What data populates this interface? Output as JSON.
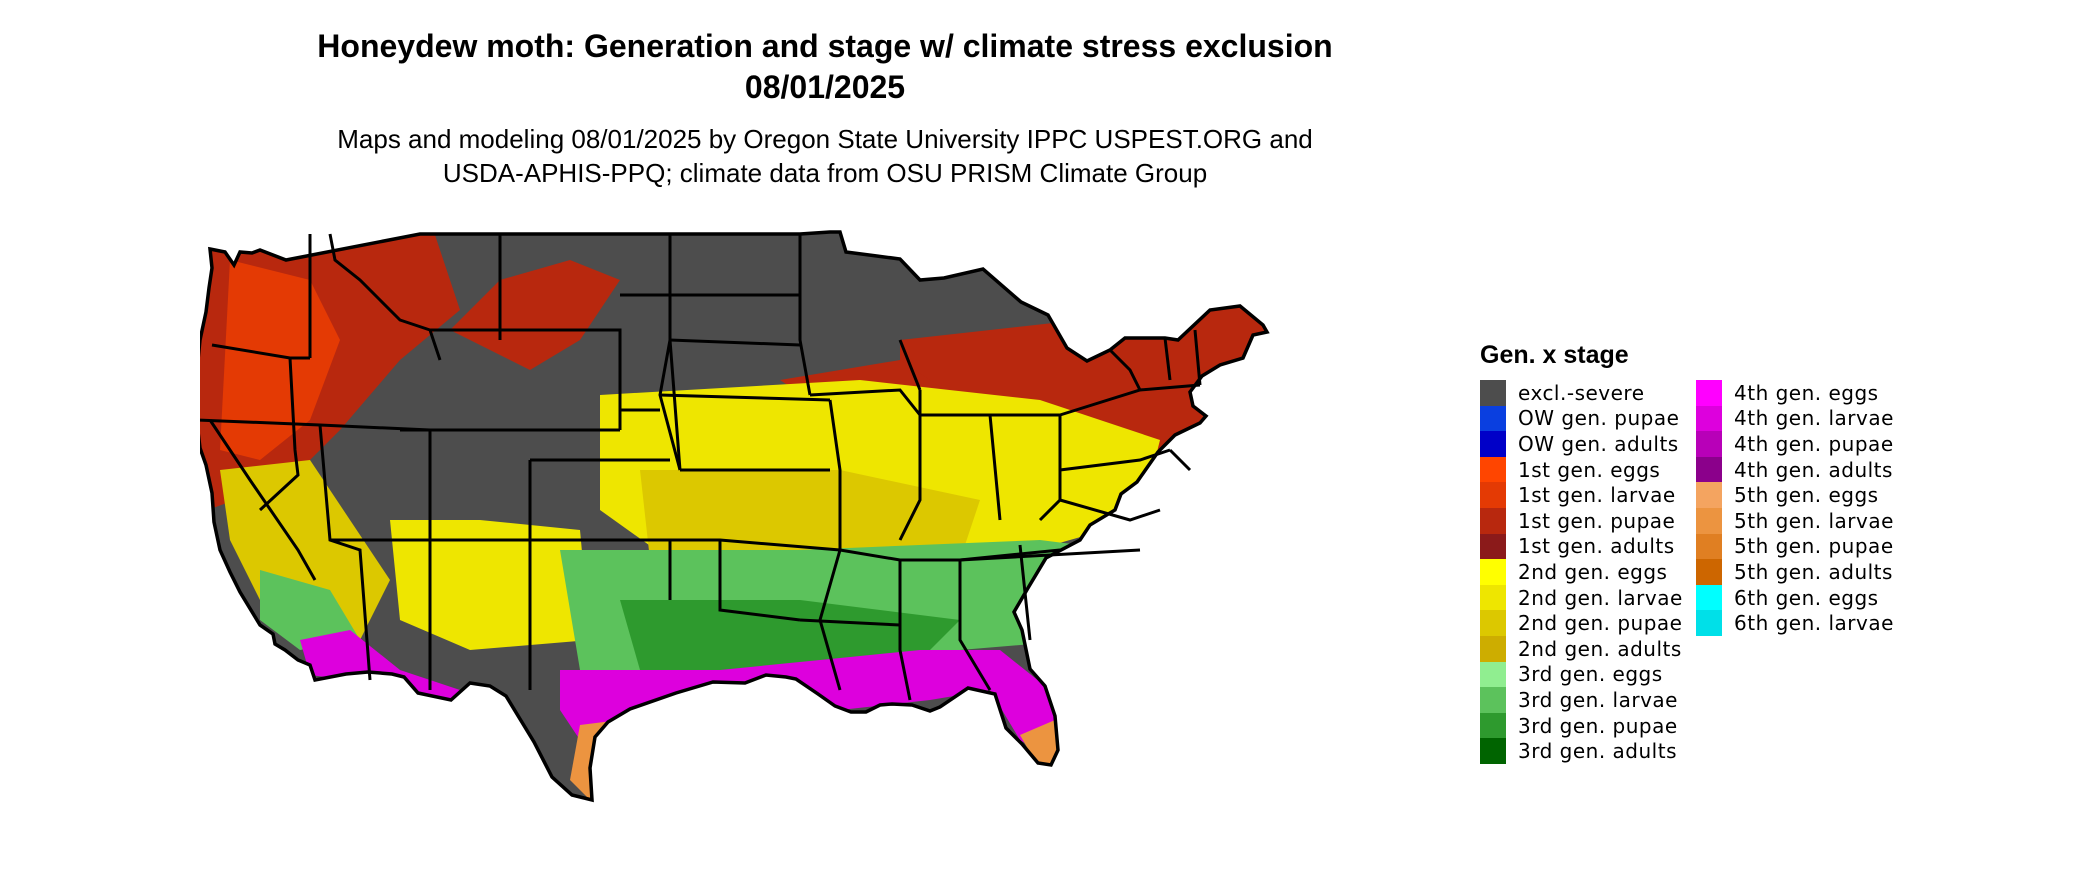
{
  "title": {
    "line1": "Honeydew moth: Generation and stage w/ climate stress exclusion",
    "line2": "08/01/2025"
  },
  "subtitle": {
    "line1": "Maps and modeling 08/01/2025 by Oregon State University IPPC USPEST.ORG and",
    "line2": "USDA-APHIS-PPQ; climate data from OSU PRISM Climate Group"
  },
  "legend": {
    "title": "Gen. x stage",
    "column1": [
      {
        "label": "excl.-severe",
        "color": "#4d4d4d"
      },
      {
        "label": "OW gen. pupae",
        "color": "#0a3fe0"
      },
      {
        "label": "OW gen. adults",
        "color": "#0000c8"
      },
      {
        "label": "1st gen. eggs",
        "color": "#ff4500"
      },
      {
        "label": "1st gen. larvae",
        "color": "#e43a04"
      },
      {
        "label": "1st gen. pupae",
        "color": "#b8280e"
      },
      {
        "label": "1st gen. adults",
        "color": "#8b1a1a"
      },
      {
        "label": "2nd gen. eggs",
        "color": "#ffff00"
      },
      {
        "label": "2nd gen. larvae",
        "color": "#eee600"
      },
      {
        "label": "2nd gen. pupae",
        "color": "#dcc800"
      },
      {
        "label": "2nd gen. adults",
        "color": "#cdad00"
      },
      {
        "label": "3rd gen. eggs",
        "color": "#90ee90"
      },
      {
        "label": "3rd gen. larvae",
        "color": "#5cc25c"
      },
      {
        "label": "3rd gen. pupae",
        "color": "#2e9a2e"
      },
      {
        "label": "3rd gen. adults",
        "color": "#006400"
      }
    ],
    "column2": [
      {
        "label": "4th gen. eggs",
        "color": "#ff00ff"
      },
      {
        "label": "4th gen. larvae",
        "color": "#dd00dd"
      },
      {
        "label": "4th gen. pupae",
        "color": "#b800b8"
      },
      {
        "label": "4th gen. adults",
        "color": "#8b008b"
      },
      {
        "label": "5th gen. eggs",
        "color": "#f4a460"
      },
      {
        "label": "5th gen. larvae",
        "color": "#ec9440"
      },
      {
        "label": "5th gen. pupae",
        "color": "#e07f22"
      },
      {
        "label": "5th gen. adults",
        "color": "#cd6600"
      },
      {
        "label": "6th gen. eggs",
        "color": "#00ffff"
      },
      {
        "label": "6th gen. larvae",
        "color": "#00e0e8"
      }
    ]
  }
}
